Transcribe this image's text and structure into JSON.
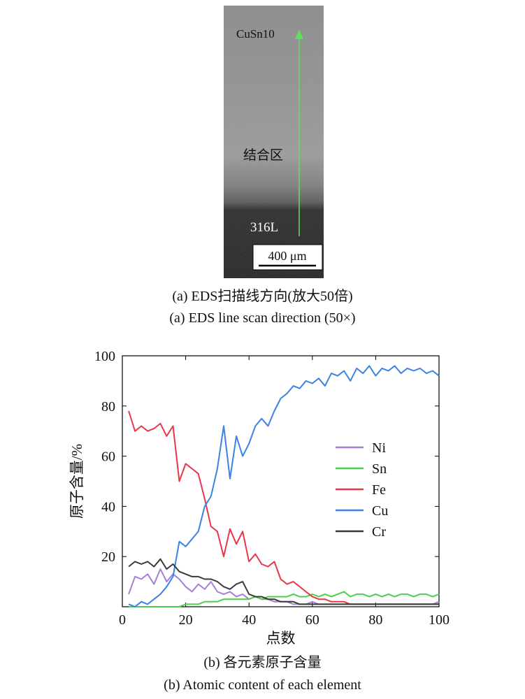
{
  "micrograph": {
    "label_top": "CuSn10",
    "label_mid": "结合区",
    "label_bottom": "316L",
    "scale_bar": "400 μm",
    "arrow_color": "#5ee05e"
  },
  "caption_a": {
    "zh": "(a) EDS扫描线方向(放大50倍)",
    "en": "(a) EDS line scan direction (50×)"
  },
  "caption_b": {
    "zh": "(b) 各元素原子含量",
    "en": "(b) Atomic content of each element"
  },
  "chart_data": {
    "type": "line",
    "xlabel": "点数",
    "ylabel": "原子含量/%",
    "xlim": [
      0,
      100
    ],
    "ylim": [
      0,
      100
    ],
    "xticks": [
      0,
      20,
      40,
      60,
      80,
      100
    ],
    "yticks": [
      20,
      40,
      60,
      80,
      100
    ],
    "legend_position": "right-middle",
    "x": [
      2,
      4,
      6,
      8,
      10,
      12,
      14,
      16,
      18,
      20,
      22,
      24,
      26,
      28,
      30,
      32,
      34,
      36,
      38,
      40,
      42,
      44,
      46,
      48,
      50,
      52,
      54,
      56,
      58,
      60,
      62,
      64,
      66,
      68,
      70,
      72,
      74,
      76,
      78,
      80,
      82,
      84,
      86,
      88,
      90,
      92,
      94,
      96,
      98,
      100
    ],
    "series": [
      {
        "name": "Ni",
        "color": "#a67fd6",
        "values": [
          5,
          12,
          11,
          13,
          9,
          15,
          10,
          13,
          11,
          8,
          6,
          9,
          7,
          10,
          6,
          5,
          6,
          4,
          5,
          3,
          4,
          3,
          3,
          2,
          2,
          2,
          1,
          1,
          1,
          2,
          1,
          1,
          1,
          1,
          1,
          1,
          1,
          1,
          1,
          1,
          1,
          1,
          1,
          1,
          1,
          1,
          1,
          1,
          1,
          2
        ]
      },
      {
        "name": "Sn",
        "color": "#4cd04c",
        "values": [
          0,
          0,
          0,
          0,
          0,
          0,
          0,
          0,
          0,
          1,
          1,
          1,
          2,
          2,
          2,
          3,
          3,
          3,
          3,
          3,
          4,
          3,
          4,
          4,
          4,
          4,
          5,
          4,
          4,
          5,
          4,
          5,
          4,
          5,
          6,
          4,
          5,
          5,
          4,
          5,
          4,
          5,
          4,
          5,
          5,
          4,
          5,
          5,
          4,
          5
        ]
      },
      {
        "name": "Fe",
        "color": "#e8364a",
        "values": [
          78,
          70,
          72,
          70,
          71,
          73,
          68,
          72,
          50,
          57,
          55,
          53,
          43,
          32,
          30,
          20,
          31,
          25,
          30,
          18,
          21,
          17,
          16,
          18,
          11,
          9,
          10,
          8,
          6,
          4,
          3,
          3,
          2,
          2,
          2,
          1,
          1,
          1,
          1,
          1,
          1,
          1,
          1,
          1,
          1,
          1,
          1,
          1,
          1,
          1
        ]
      },
      {
        "name": "Cu",
        "color": "#3b82e6",
        "values": [
          1,
          0,
          2,
          1,
          3,
          5,
          8,
          12,
          26,
          24,
          27,
          30,
          40,
          44,
          55,
          72,
          51,
          68,
          60,
          65,
          72,
          75,
          72,
          78,
          83,
          85,
          88,
          87,
          90,
          89,
          91,
          88,
          93,
          92,
          94,
          90,
          95,
          93,
          96,
          92,
          95,
          94,
          96,
          93,
          95,
          94,
          95,
          93,
          94,
          92
        ]
      },
      {
        "name": "Cr",
        "color": "#3a3a3a",
        "values": [
          16,
          18,
          17,
          18,
          16,
          19,
          15,
          17,
          14,
          13,
          12,
          12,
          11,
          11,
          10,
          8,
          7,
          9,
          10,
          5,
          4,
          4,
          3,
          3,
          2,
          2,
          2,
          1,
          1,
          1,
          1,
          1,
          1,
          1,
          1,
          1,
          1,
          1,
          1,
          1,
          1,
          1,
          1,
          1,
          1,
          1,
          1,
          1,
          1,
          1
        ]
      }
    ]
  }
}
